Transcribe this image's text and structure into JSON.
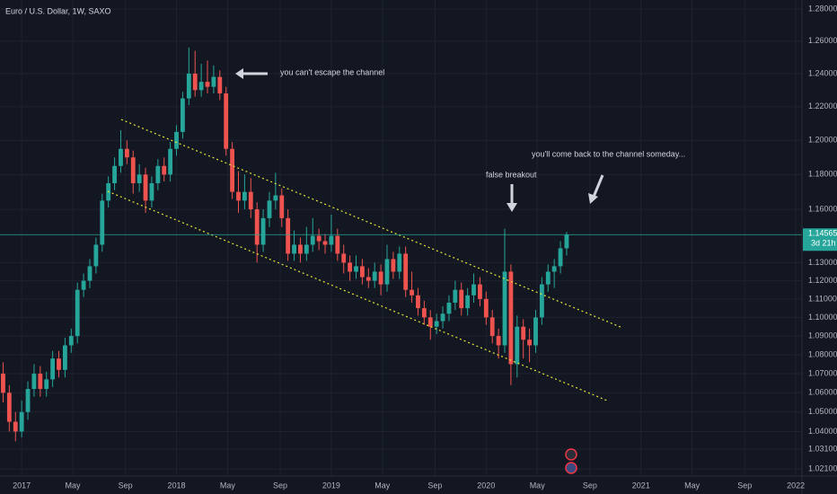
{
  "chart_data": {
    "type": "candlestick",
    "title": "Euro / U.S. Dollar, 1W, SAXO",
    "log_scale": true,
    "grid": true,
    "up_color": "#26a69a",
    "down_color": "#ef5350",
    "xlim": [
      2016.86,
      2022.04
    ],
    "xticks": [
      2017,
      {
        "value": 2017.33,
        "label": "May"
      },
      {
        "value": 2017.67,
        "label": "Sep"
      },
      2018,
      {
        "value": 2018.33,
        "label": "May"
      },
      {
        "value": 2018.67,
        "label": "Sep"
      },
      2019,
      {
        "value": 2019.33,
        "label": "May"
      },
      {
        "value": 2019.67,
        "label": "Sep"
      },
      2020,
      {
        "value": 2020.33,
        "label": "May"
      },
      {
        "value": 2020.67,
        "label": "Sep"
      },
      2021,
      {
        "value": 2021.33,
        "label": "May"
      },
      {
        "value": 2021.67,
        "label": "Sep"
      },
      2022
    ],
    "ylim": [
      1.0175,
      1.2857
    ],
    "yticks": [
      {
        "value": 1.28,
        "label": "1.28000"
      },
      {
        "value": 1.26,
        "label": "1.26000"
      },
      {
        "value": 1.24,
        "label": "1.24000"
      },
      {
        "value": 1.22,
        "label": "1.22000"
      },
      {
        "value": 1.2,
        "label": "1.20000"
      },
      {
        "value": 1.18,
        "label": "1.18000"
      },
      {
        "value": 1.16,
        "label": "1.16000"
      },
      {
        "value": 1.13,
        "label": "1.13000"
      },
      {
        "value": 1.12,
        "label": "1.12000"
      },
      {
        "value": 1.11,
        "label": "1.11000"
      },
      {
        "value": 1.1,
        "label": "1.10000"
      },
      {
        "value": 1.09,
        "label": "1.09000"
      },
      {
        "value": 1.08,
        "label": "1.08000"
      },
      {
        "value": 1.07,
        "label": "1.07000"
      },
      {
        "value": 1.06,
        "label": "1.06000"
      },
      {
        "value": 1.05,
        "label": "1.05000"
      },
      {
        "value": 1.04,
        "label": "1.04000"
      },
      {
        "value": 1.031,
        "label": "1.03100"
      },
      {
        "value": 1.021,
        "label": "1.02100"
      }
    ],
    "last_price": {
      "value": 1.14565,
      "label": "1.14565"
    },
    "countdown": "3d 21h",
    "annotations": [
      "you can't escape the channel",
      "false breakout",
      "you'll come back to the channel someday..."
    ],
    "x": [
      2016.88,
      2016.92,
      2016.96,
      2017,
      2017.04,
      2017.08,
      2017.12,
      2017.16,
      2017.2,
      2017.24,
      2017.28,
      2017.32,
      2017.36,
      2017.4,
      2017.44,
      2017.48,
      2017.52,
      2017.56,
      2017.6,
      2017.64,
      2017.68,
      2017.72,
      2017.76,
      2017.8,
      2017.84,
      2017.88,
      2017.92,
      2017.96,
      2018,
      2018.04,
      2018.08,
      2018.12,
      2018.16,
      2018.2,
      2018.24,
      2018.28,
      2018.32,
      2018.36,
      2018.4,
      2018.44,
      2018.48,
      2018.52,
      2018.56,
      2018.6,
      2018.64,
      2018.68,
      2018.72,
      2018.76,
      2018.8,
      2018.84,
      2018.88,
      2018.92,
      2018.96,
      2019,
      2019.04,
      2019.08,
      2019.12,
      2019.16,
      2019.2,
      2019.24,
      2019.28,
      2019.32,
      2019.36,
      2019.4,
      2019.44,
      2019.48,
      2019.52,
      2019.56,
      2019.6,
      2019.64,
      2019.68,
      2019.72,
      2019.76,
      2019.8,
      2019.84,
      2019.88,
      2019.92,
      2019.96,
      2020,
      2020.04,
      2020.08,
      2020.12,
      2020.16,
      2020.2,
      2020.24,
      2020.28,
      2020.32,
      2020.36,
      2020.4,
      2020.44,
      2020.48,
      2020.52
    ],
    "ohlc": [
      [
        1.07,
        1.076,
        1.055,
        1.06
      ],
      [
        1.06,
        1.064,
        1.04,
        1.045
      ],
      [
        1.045,
        1.05,
        1.035,
        1.04
      ],
      [
        1.04,
        1.056,
        1.037,
        1.05
      ],
      [
        1.05,
        1.066,
        1.046,
        1.062
      ],
      [
        1.062,
        1.075,
        1.058,
        1.07
      ],
      [
        1.07,
        1.074,
        1.058,
        1.062
      ],
      [
        1.062,
        1.071,
        1.058,
        1.067
      ],
      [
        1.067,
        1.082,
        1.063,
        1.078
      ],
      [
        1.078,
        1.082,
        1.068,
        1.072
      ],
      [
        1.072,
        1.089,
        1.068,
        1.085
      ],
      [
        1.085,
        1.094,
        1.081,
        1.09
      ],
      [
        1.09,
        1.119,
        1.086,
        1.115
      ],
      [
        1.115,
        1.124,
        1.111,
        1.12
      ],
      [
        1.12,
        1.132,
        1.116,
        1.128
      ],
      [
        1.128,
        1.144,
        1.124,
        1.14
      ],
      [
        1.14,
        1.169,
        1.136,
        1.165
      ],
      [
        1.165,
        1.179,
        1.161,
        1.175
      ],
      [
        1.175,
        1.19,
        1.171,
        1.185
      ],
      [
        1.185,
        1.206,
        1.181,
        1.195
      ],
      [
        1.195,
        1.2,
        1.186,
        1.19
      ],
      [
        1.19,
        1.194,
        1.169,
        1.175
      ],
      [
        1.175,
        1.186,
        1.17,
        1.18
      ],
      [
        1.18,
        1.184,
        1.158,
        1.165
      ],
      [
        1.165,
        1.179,
        1.161,
        1.175
      ],
      [
        1.175,
        1.189,
        1.171,
        1.185
      ],
      [
        1.185,
        1.19,
        1.176,
        1.18
      ],
      [
        1.18,
        1.199,
        1.176,
        1.195
      ],
      [
        1.195,
        1.209,
        1.191,
        1.205
      ],
      [
        1.205,
        1.229,
        1.201,
        1.225
      ],
      [
        1.225,
        1.256,
        1.221,
        1.24
      ],
      [
        1.24,
        1.254,
        1.226,
        1.23
      ],
      [
        1.23,
        1.246,
        1.226,
        1.235
      ],
      [
        1.235,
        1.248,
        1.228,
        1.232
      ],
      [
        1.232,
        1.245,
        1.228,
        1.238
      ],
      [
        1.238,
        1.242,
        1.224,
        1.228
      ],
      [
        1.228,
        1.232,
        1.191,
        1.195
      ],
      [
        1.195,
        1.199,
        1.166,
        1.17
      ],
      [
        1.17,
        1.182,
        1.158,
        1.165
      ],
      [
        1.165,
        1.18,
        1.16,
        1.17
      ],
      [
        1.17,
        1.178,
        1.155,
        1.16
      ],
      [
        1.16,
        1.164,
        1.13,
        1.14
      ],
      [
        1.14,
        1.16,
        1.136,
        1.155
      ],
      [
        1.155,
        1.17,
        1.15,
        1.165
      ],
      [
        1.165,
        1.181,
        1.16,
        1.168
      ],
      [
        1.168,
        1.172,
        1.15,
        1.155
      ],
      [
        1.155,
        1.16,
        1.131,
        1.135
      ],
      [
        1.135,
        1.148,
        1.131,
        1.14
      ],
      [
        1.14,
        1.144,
        1.13,
        1.135
      ],
      [
        1.135,
        1.15,
        1.131,
        1.14
      ],
      [
        1.14,
        1.155,
        1.136,
        1.145
      ],
      [
        1.145,
        1.149,
        1.137,
        1.142
      ],
      [
        1.142,
        1.146,
        1.135,
        1.14
      ],
      [
        1.14,
        1.157,
        1.136,
        1.145
      ],
      [
        1.145,
        1.149,
        1.131,
        1.135
      ],
      [
        1.135,
        1.14,
        1.124,
        1.13
      ],
      [
        1.13,
        1.134,
        1.12,
        1.125
      ],
      [
        1.125,
        1.134,
        1.121,
        1.128
      ],
      [
        1.128,
        1.132,
        1.118,
        1.122
      ],
      [
        1.122,
        1.127,
        1.116,
        1.12
      ],
      [
        1.12,
        1.13,
        1.116,
        1.125
      ],
      [
        1.125,
        1.129,
        1.112,
        1.118
      ],
      [
        1.118,
        1.14,
        1.114,
        1.132
      ],
      [
        1.132,
        1.136,
        1.121,
        1.125
      ],
      [
        1.125,
        1.139,
        1.121,
        1.135
      ],
      [
        1.135,
        1.139,
        1.111,
        1.115
      ],
      [
        1.115,
        1.125,
        1.108,
        1.112
      ],
      [
        1.112,
        1.116,
        1.101,
        1.105
      ],
      [
        1.105,
        1.109,
        1.096,
        1.1
      ],
      [
        1.1,
        1.104,
        1.088,
        1.095
      ],
      [
        1.095,
        1.102,
        1.091,
        1.098
      ],
      [
        1.098,
        1.106,
        1.094,
        1.102
      ],
      [
        1.102,
        1.112,
        1.098,
        1.108
      ],
      [
        1.108,
        1.12,
        1.104,
        1.115
      ],
      [
        1.115,
        1.119,
        1.101,
        1.105
      ],
      [
        1.105,
        1.116,
        1.101,
        1.112
      ],
      [
        1.112,
        1.124,
        1.108,
        1.118
      ],
      [
        1.118,
        1.122,
        1.106,
        1.11
      ],
      [
        1.11,
        1.114,
        1.096,
        1.1
      ],
      [
        1.1,
        1.104,
        1.086,
        1.09
      ],
      [
        1.09,
        1.094,
        1.078,
        1.085
      ],
      [
        1.085,
        1.149,
        1.081,
        1.125
      ],
      [
        1.125,
        1.129,
        1.064,
        1.075
      ],
      [
        1.075,
        1.101,
        1.068,
        1.095
      ],
      [
        1.095,
        1.099,
        1.078,
        1.088
      ],
      [
        1.088,
        1.094,
        1.076,
        1.085
      ],
      [
        1.085,
        1.104,
        1.081,
        1.1
      ],
      [
        1.1,
        1.122,
        1.096,
        1.118
      ],
      [
        1.118,
        1.129,
        1.114,
        1.125
      ],
      [
        1.125,
        1.132,
        1.116,
        1.128
      ],
      [
        1.128,
        1.142,
        1.124,
        1.138
      ],
      [
        1.138,
        1.1472,
        1.134,
        1.14565
      ]
    ]
  }
}
